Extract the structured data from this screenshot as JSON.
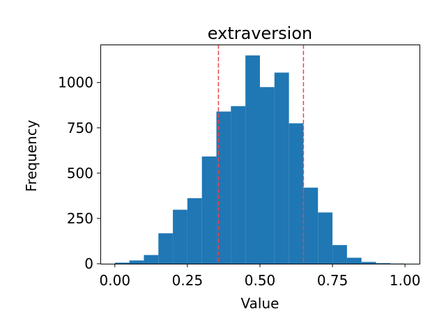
{
  "chart_data": {
    "type": "bar",
    "title": "extraversion",
    "xlabel": "Value",
    "ylabel": "Frequency",
    "xlim": [
      -0.05,
      1.05
    ],
    "ylim": [
      0,
      1210
    ],
    "bin_edges": [
      0.0,
      0.05,
      0.1,
      0.15,
      0.2,
      0.25,
      0.3,
      0.35,
      0.4,
      0.45,
      0.5,
      0.55,
      0.6,
      0.65,
      0.7,
      0.75,
      0.8,
      0.85,
      0.9,
      0.95,
      1.0
    ],
    "values": [
      6,
      18,
      48,
      168,
      298,
      362,
      592,
      840,
      870,
      1150,
      975,
      1055,
      775,
      420,
      283,
      103,
      33,
      10,
      3,
      1
    ],
    "x_ticks": [
      0.0,
      0.25,
      0.5,
      0.75,
      1.0
    ],
    "x_tick_labels": [
      "0.00",
      "0.25",
      "0.50",
      "0.75",
      "1.00"
    ],
    "y_ticks": [
      0,
      250,
      500,
      750,
      1000
    ],
    "y_tick_labels": [
      "0",
      "250",
      "500",
      "750",
      "1000"
    ],
    "reference_lines": [
      0.357,
      0.65
    ],
    "colors": {
      "bar": "#1f77b4",
      "reference_line": "#e8454a"
    }
  }
}
